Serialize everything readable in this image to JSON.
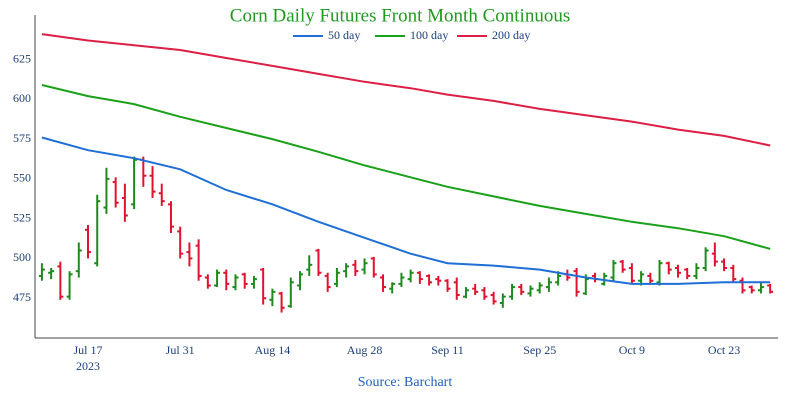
{
  "chart_data": {
    "type": "ohlc",
    "title": "Corn Daily Futures Front Month Continuous",
    "source": "Source: Barchart",
    "x": [
      "2023-07-10",
      "2023-07-11",
      "2023-07-12",
      "2023-07-13",
      "2023-07-14",
      "2023-07-17",
      "2023-07-18",
      "2023-07-19",
      "2023-07-20",
      "2023-07-21",
      "2023-07-24",
      "2023-07-25",
      "2023-07-26",
      "2023-07-27",
      "2023-07-28",
      "2023-07-31",
      "2023-08-01",
      "2023-08-02",
      "2023-08-03",
      "2023-08-04",
      "2023-08-07",
      "2023-08-08",
      "2023-08-09",
      "2023-08-10",
      "2023-08-11",
      "2023-08-14",
      "2023-08-15",
      "2023-08-16",
      "2023-08-17",
      "2023-08-18",
      "2023-08-21",
      "2023-08-22",
      "2023-08-23",
      "2023-08-24",
      "2023-08-25",
      "2023-08-28",
      "2023-08-29",
      "2023-08-30",
      "2023-08-31",
      "2023-09-01",
      "2023-09-05",
      "2023-09-06",
      "2023-09-07",
      "2023-09-08",
      "2023-09-11",
      "2023-09-12",
      "2023-09-13",
      "2023-09-14",
      "2023-09-15",
      "2023-09-18",
      "2023-09-19",
      "2023-09-20",
      "2023-09-21",
      "2023-09-22",
      "2023-09-25",
      "2023-09-26",
      "2023-09-27",
      "2023-09-28",
      "2023-09-29",
      "2023-10-02",
      "2023-10-03",
      "2023-10-04",
      "2023-10-05",
      "2023-10-06",
      "2023-10-09",
      "2023-10-10",
      "2023-10-11",
      "2023-10-12",
      "2023-10-13",
      "2023-10-16",
      "2023-10-17",
      "2023-10-18",
      "2023-10-19",
      "2023-10-20",
      "2023-10-23",
      "2023-10-24",
      "2023-10-25",
      "2023-10-26",
      "2023-10-27",
      "2023-10-30"
    ],
    "open": [
      489,
      491,
      495,
      476,
      492,
      518,
      497,
      532,
      548,
      538,
      534,
      562,
      552,
      541,
      534,
      517,
      504,
      508,
      488,
      483,
      491,
      482,
      490,
      484,
      493,
      474,
      478,
      470,
      483,
      493,
      505,
      489,
      484,
      492,
      496,
      493,
      500,
      488,
      481,
      484,
      487,
      491,
      489,
      487,
      486,
      485,
      476,
      481,
      480,
      477,
      472,
      476,
      482,
      478,
      480,
      482,
      485,
      490,
      492,
      478,
      489,
      484,
      488,
      498,
      494,
      486,
      489,
      485,
      497,
      494,
      493,
      489,
      494,
      503,
      498,
      494,
      486,
      482,
      480,
      483
    ],
    "high": [
      497,
      494,
      498,
      492,
      510,
      521,
      540,
      557,
      551,
      547,
      564,
      564,
      558,
      547,
      536,
      520,
      510,
      512,
      490,
      493,
      493,
      490,
      491,
      489,
      494,
      481,
      479,
      488,
      492,
      502,
      506,
      491,
      494,
      497,
      499,
      500,
      501,
      490,
      485,
      491,
      493,
      492,
      490,
      489,
      487,
      488,
      482,
      484,
      482,
      479,
      478,
      484,
      484,
      483,
      485,
      488,
      492,
      493,
      494,
      490,
      491,
      491,
      499,
      499,
      497,
      492,
      491,
      499,
      498,
      496,
      494,
      497,
      507,
      510,
      500,
      496,
      488,
      483,
      485,
      484
    ],
    "low": [
      486,
      487,
      474,
      474,
      488,
      500,
      495,
      528,
      532,
      523,
      531,
      545,
      538,
      533,
      516,
      500,
      495,
      486,
      481,
      482,
      480,
      480,
      481,
      481,
      471,
      470,
      466,
      469,
      480,
      489,
      489,
      479,
      482,
      488,
      489,
      490,
      488,
      479,
      478,
      482,
      485,
      484,
      483,
      483,
      479,
      474,
      475,
      477,
      474,
      471,
      469,
      474,
      477,
      476,
      478,
      479,
      483,
      486,
      476,
      477,
      485,
      483,
      486,
      491,
      484,
      483,
      484,
      483,
      490,
      488,
      487,
      487,
      492,
      495,
      492,
      485,
      478,
      478,
      478,
      478
    ],
    "close": [
      493,
      492,
      476,
      490,
      505,
      504,
      536,
      550,
      535,
      527,
      562,
      552,
      542,
      536,
      520,
      503,
      500,
      489,
      483,
      491,
      484,
      488,
      484,
      487,
      475,
      479,
      469,
      485,
      490,
      496,
      491,
      482,
      491,
      495,
      492,
      497,
      490,
      482,
      484,
      488,
      491,
      487,
      485,
      486,
      481,
      477,
      480,
      479,
      476,
      473,
      476,
      482,
      479,
      481,
      483,
      485,
      489,
      488,
      479,
      487,
      487,
      489,
      497,
      493,
      486,
      490,
      486,
      497,
      493,
      491,
      489,
      494,
      505,
      498,
      494,
      487,
      480,
      480,
      482,
      479
    ],
    "up_color": "#1e8a1e",
    "down_color": "#e0132f",
    "series": [
      {
        "name": "50 day",
        "color": "#1f6fd6",
        "x": [
          "2023-07-10",
          "2023-07-17",
          "2023-07-24",
          "2023-07-31",
          "2023-08-07",
          "2023-08-14",
          "2023-08-21",
          "2023-08-28",
          "2023-09-05",
          "2023-09-11",
          "2023-09-18",
          "2023-09-25",
          "2023-10-02",
          "2023-10-09",
          "2023-10-16",
          "2023-10-23",
          "2023-10-30"
        ],
        "values": [
          576,
          568,
          563,
          556,
          543,
          534,
          523,
          513,
          503,
          497,
          495.5,
          493,
          488,
          484,
          484,
          485,
          485
        ]
      },
      {
        "name": "100 day",
        "color": "#1aa01a",
        "x": [
          "2023-07-10",
          "2023-07-17",
          "2023-07-24",
          "2023-07-31",
          "2023-08-07",
          "2023-08-14",
          "2023-08-21",
          "2023-08-28",
          "2023-09-05",
          "2023-09-11",
          "2023-09-18",
          "2023-09-25",
          "2023-10-02",
          "2023-10-09",
          "2023-10-16",
          "2023-10-23",
          "2023-10-30"
        ],
        "values": [
          609,
          602,
          597,
          589,
          582,
          575,
          567,
          558.5,
          551,
          545,
          539,
          533,
          528,
          523,
          519,
          514,
          506
        ]
      },
      {
        "name": "200 day",
        "color": "#dc1f45",
        "x": [
          "2023-07-10",
          "2023-07-17",
          "2023-07-24",
          "2023-07-31",
          "2023-08-07",
          "2023-08-14",
          "2023-08-21",
          "2023-08-28",
          "2023-09-05",
          "2023-09-11",
          "2023-09-18",
          "2023-09-25",
          "2023-10-02",
          "2023-10-09",
          "2023-10-16",
          "2023-10-23",
          "2023-10-30"
        ],
        "values": [
          641,
          637,
          634,
          631,
          626,
          621,
          616,
          611,
          607,
          603,
          599,
          594,
          590,
          586,
          581,
          577,
          571
        ]
      }
    ],
    "xticks": [
      {
        "value": "2023-07-17",
        "label": "Jul 17"
      },
      {
        "value": "2023-07-31",
        "label": "Jul 31"
      },
      {
        "value": "2023-08-14",
        "label": "Aug 14"
      },
      {
        "value": "2023-08-28",
        "label": "Aug 28"
      },
      {
        "value": "2023-09-11",
        "label": "Sep 11"
      },
      {
        "value": "2023-09-25",
        "label": "Sep 25"
      },
      {
        "value": "2023-10-09",
        "label": "Oct 9"
      },
      {
        "value": "2023-10-23",
        "label": "Oct 23"
      }
    ],
    "x_year_label": "2023",
    "ylim": [
      450,
      653
    ],
    "yticks": [
      475,
      500,
      525,
      550,
      575,
      600,
      625
    ]
  }
}
